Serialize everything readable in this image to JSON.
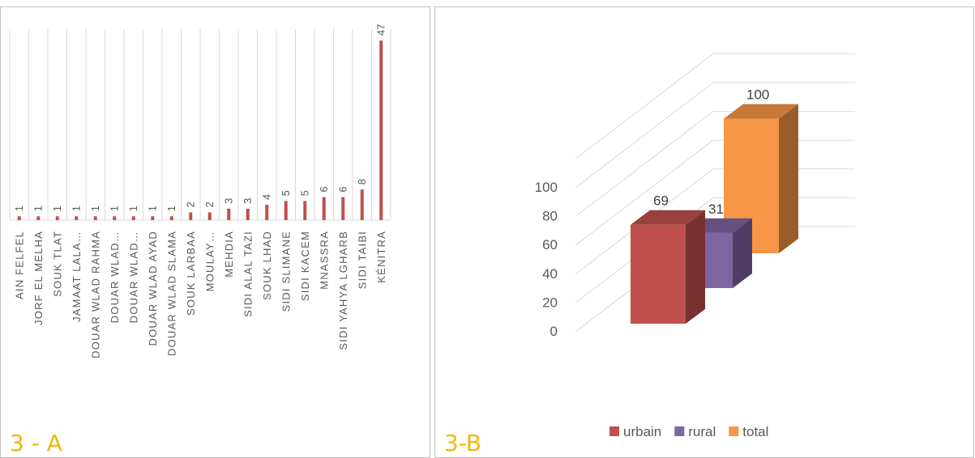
{
  "panels": {
    "a_label": "3 - A",
    "b_label": "3-B"
  },
  "colors": {
    "bar_a": "#c0504d",
    "grid": "#d9d9d9",
    "frame": "#bfbfbf",
    "panel_label": "#f2b705",
    "urbain": "#c0504d",
    "rural": "#8064a2",
    "total": "#f79646",
    "text": "#595959"
  },
  "chart_data": [
    {
      "type": "bar",
      "panel": "3 - A",
      "categories": [
        "AIN FELFEL",
        "JORF EL MELHA",
        "SOUK TLAT",
        "JAMAAT LALA…",
        "DOUAR WLAD RAHMA",
        "DOUAR WLAD…",
        "DOUAR WLAD…",
        "DOUAR WLAD AYAD",
        "DOUAR WLAD SLAMA",
        "SOUK LARBAA",
        "MOULAY…",
        "MEHDIA",
        "SIDI ALAL TAZI",
        "SOUK LHAD",
        "SIDI SLIMANE",
        "SIDI KACEM",
        "MNASSRA",
        "SIDI YAHYA LGHARB",
        "SIDI TAIBI",
        "KÉNITRA"
      ],
      "values": [
        1,
        1,
        1,
        1,
        1,
        1,
        1,
        1,
        1,
        2,
        2,
        3,
        3,
        4,
        5,
        5,
        6,
        6,
        8,
        47
      ],
      "data_labels": true,
      "grid": true,
      "ylim": [
        0,
        50
      ]
    },
    {
      "type": "bar",
      "panel": "3-B",
      "style": "3d-column",
      "categories": [
        "urbain",
        "rural",
        "total"
      ],
      "values": [
        69,
        31,
        100
      ],
      "y_ticks": [
        0,
        20,
        40,
        60,
        80,
        100
      ],
      "ylim": [
        0,
        120
      ],
      "legend": {
        "position": "bottom",
        "entries": [
          "urbain",
          "rural",
          "total"
        ]
      },
      "grid": true
    }
  ]
}
